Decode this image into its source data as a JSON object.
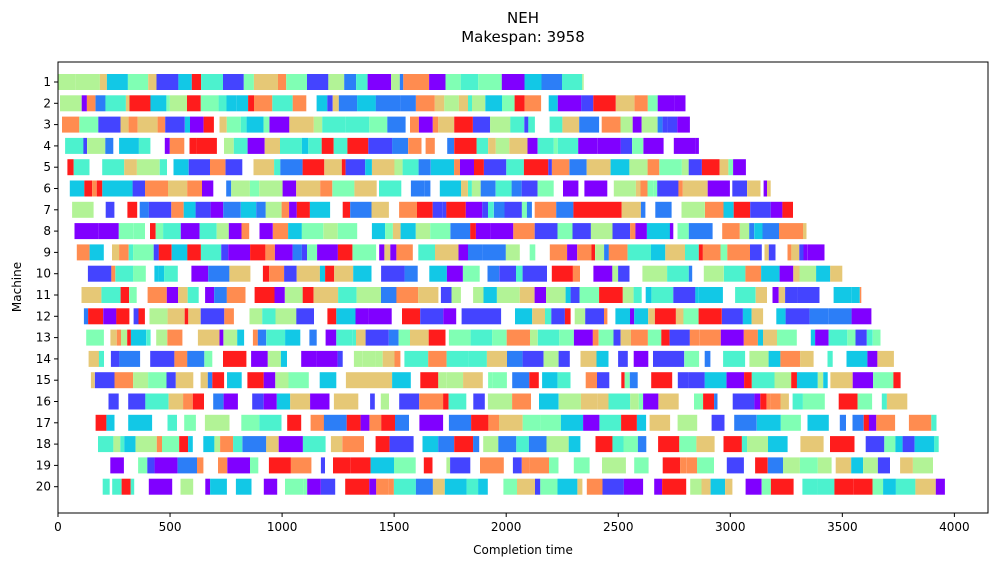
{
  "chart_data": {
    "type": "gantt",
    "title": "NEH",
    "subtitle": "Makespan: 3958",
    "xlabel": "Completion time",
    "ylabel": "Machine",
    "xlim": [
      0,
      4150
    ],
    "x_ticks": [
      0,
      500,
      1000,
      1500,
      2000,
      2500,
      3000,
      3500,
      4000
    ],
    "machines": [
      1,
      2,
      3,
      4,
      5,
      6,
      7,
      8,
      9,
      10,
      11,
      12,
      13,
      14,
      15,
      16,
      17,
      18,
      19,
      20
    ],
    "makespan": 3958,
    "machine_end_times": [
      2340,
      2800,
      2820,
      2860,
      3070,
      3180,
      3280,
      3340,
      3420,
      3500,
      3580,
      3630,
      3670,
      3730,
      3760,
      3790,
      3920,
      3930,
      3940,
      3958
    ],
    "palette": [
      "#8000ff",
      "#4444ff",
      "#2c7ef7",
      "#12c8e6",
      "#4cf2ce",
      "#80ffb4",
      "#b2f396",
      "#e6c876",
      "#ff8c50",
      "#ff1c1c"
    ],
    "grid": false,
    "legend": "none"
  }
}
